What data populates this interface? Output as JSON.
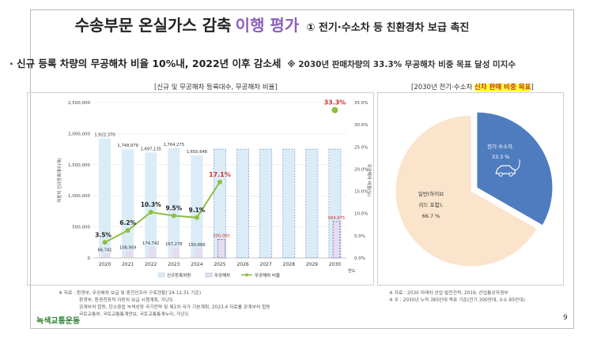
{
  "title": {
    "main": "수송부문 온실가스 감축",
    "highlight": "이행 평가",
    "sub": "① 전기·수소차 등 친환경차 보급 촉진"
  },
  "bullet": {
    "main": "· 신규 등록 차량의 무공해차 비율 10%내, 2022년 이후 감소세",
    "note": "※ 2030년 판매차량의 33.3% 무공해차 비중 목표 달성 미지수"
  },
  "left_caption": "[신규 및 무공해차 등록대수, 무공해차 비율]",
  "right_caption": {
    "prefix": "[2030년 전기·수소차",
    "highlight": "신차 판매 비중 목표",
    "suffix": "]"
  },
  "chart_data": [
    {
      "type": "bar",
      "categories": [
        "2020",
        "2021",
        "2022",
        "2023",
        "2024",
        "2025",
        "2026",
        "2027",
        "2028",
        "2029",
        "2030"
      ],
      "x_suffix": "연도",
      "ylabel": "자동차 신규등록대수(대)",
      "ylabel2": "무공해차 비율(%)",
      "ylim": [
        0,
        2500000
      ],
      "ylim2": [
        0,
        35
      ],
      "yticks": [
        "0",
        "500,000",
        "1,000,000",
        "1,500,000",
        "2,000,000",
        "2,500,000"
      ],
      "yticks2": [
        "0.0%",
        "5.0%",
        "10.0%",
        "15.0%",
        "20.0%",
        "25.0%",
        "30.0%",
        "35.0%"
      ],
      "series": [
        {
          "name": "신규등록차량",
          "values": [
            1922370,
            1748979,
            1697135,
            1764275,
            1650648,
            1750000,
            1750000,
            1750000,
            1750000,
            1750000,
            1750000
          ],
          "labels": [
            "1,922,370",
            "1,748,979",
            "1,697,135",
            "1,764,275",
            "1,650,648",
            "",
            "",
            "",
            "",
            "",
            ""
          ],
          "color": "#dcecf7"
        },
        {
          "name": "무공해차",
          "values": [
            66741,
            108959,
            174742,
            167278,
            150686,
            300000,
            null,
            null,
            null,
            null,
            584975
          ],
          "labels": [
            "66,741",
            "108,959",
            "174,742",
            "167,278",
            "150,686",
            "300,000",
            "",
            "",
            "",
            "",
            "584,975"
          ],
          "color": "#e6dcf0"
        },
        {
          "name": "무공해차 비율",
          "values": [
            3.5,
            6.2,
            10.3,
            9.5,
            9.1,
            17.1,
            null,
            null,
            null,
            null,
            33.3
          ],
          "labels": [
            "3.5%",
            "6.2%",
            "10.3%",
            "9.5%",
            "9.1%",
            "17.1%",
            "",
            "",
            "",
            "",
            "33.3%"
          ],
          "color": "#8cbf3f"
        }
      ],
      "legend": [
        "신규등록차량",
        "무공해차",
        "무공해차 비율"
      ],
      "legend_position": "bottom"
    },
    {
      "type": "pie",
      "categories": [
        "전기·수소차",
        "일반(하이브리드 포함)"
      ],
      "values": [
        33.3,
        66.7
      ],
      "labels": [
        {
          "l1": "전기·수소차,",
          "l2": "33.3 %"
        },
        {
          "l1": "일반(하이브",
          "l2": "리드 포함),",
          "l3": "66.7 %"
        }
      ],
      "colors": [
        "#4f7cbf",
        "#fbe4cc"
      ]
    }
  ],
  "notes_left": [
    "※ 자료 : 환경부, 무공해차 보급 및 충전인프라 구축현황(’24.12.31 기준)",
    "환경부, 환경친화적 자동차 보급 시행계획, 각년도",
    "관계부처 합동, 탄소중립 녹색성장 국가전략 및 제1차 국가 기본계획, 2023.4 자료를 관계부처 합동",
    "국토교통부, 국토교통통계연보,  국토교통통계누리, 각년도"
  ],
  "notes_right": [
    "※ 자료 : 2030 미래차 산업 발전전략, 2019, 산업통상자원부",
    "※ 주 : 2030년 누적 385만대 목표 기준(전기 300만대, 수소 85만대)"
  ],
  "logo": "녹색교통운동",
  "page_number": "9"
}
